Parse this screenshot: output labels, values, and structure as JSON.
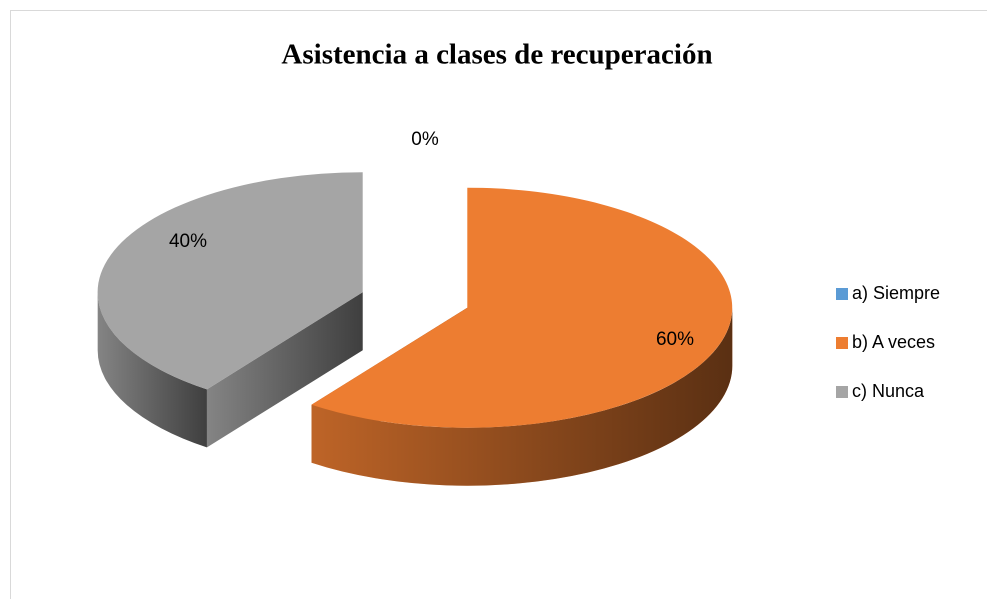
{
  "chart_data": {
    "type": "pie",
    "title": "Asistencia a clases de recuperación",
    "categories": [
      "a) Siempre",
      "b) A veces",
      "c) Nunca"
    ],
    "values": [
      0,
      60,
      40
    ],
    "value_labels": [
      "0%",
      "60%",
      "40%"
    ],
    "colors": [
      "#5b9bd5",
      "#ed7d31",
      "#a5a5a5"
    ],
    "legend": "right"
  }
}
